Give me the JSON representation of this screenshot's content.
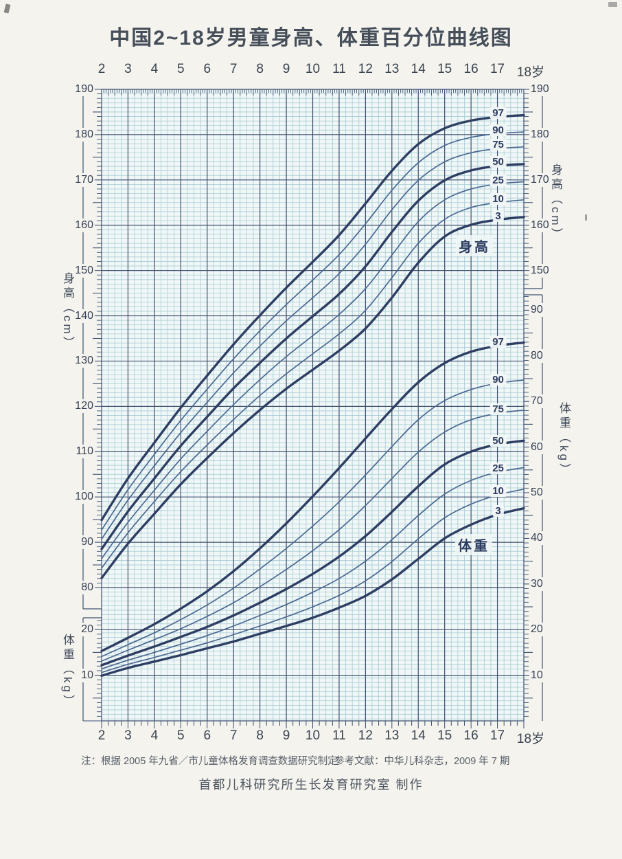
{
  "title": "中国2~18岁男童身高、体重百分位曲线图",
  "axes": {
    "age_labels": [
      "2",
      "3",
      "4",
      "5",
      "6",
      "7",
      "8",
      "9",
      "10",
      "11",
      "12",
      "13",
      "14",
      "15",
      "16",
      "17",
      "18岁"
    ],
    "height_axis_label": "身高（cm）",
    "weight_axis_label": "体重（kg）",
    "left_height_ticks": [
      190,
      180,
      170,
      160,
      150,
      140,
      130,
      120,
      110,
      100,
      90,
      80
    ],
    "left_weight_ticks": [
      20,
      10
    ],
    "right_height_ticks": [
      190,
      180,
      170,
      160,
      150
    ],
    "right_weight_ticks": [
      90,
      80,
      70,
      60,
      50,
      40,
      30,
      20,
      10
    ]
  },
  "chart_data": {
    "type": "line",
    "title": "中国2~18岁男童身高、体重百分位曲线图",
    "x": [
      2,
      3,
      4,
      5,
      6,
      7,
      8,
      9,
      10,
      11,
      12,
      13,
      14,
      15,
      16,
      17,
      18
    ],
    "x_range": [
      2,
      18
    ],
    "height_axis_range_cm": [
      80,
      190
    ],
    "weight_axis_range_kg": [
      0,
      90
    ],
    "grid": "on",
    "height_label": "身高",
    "weight_label": "体重",
    "percentile_order": [
      "97",
      "90",
      "75",
      "50",
      "25",
      "10",
      "3"
    ],
    "height_series": [
      {
        "name": "97",
        "values": [
          94.9,
          104.1,
          112.0,
          119.7,
          126.8,
          133.7,
          140.1,
          146.2,
          151.9,
          157.8,
          164.8,
          172.0,
          177.9,
          181.4,
          183.1,
          183.9,
          184.3
        ]
      },
      {
        "name": "90",
        "values": [
          92.7,
          101.6,
          109.4,
          116.9,
          123.8,
          130.5,
          136.7,
          142.5,
          147.9,
          153.5,
          160.3,
          167.7,
          173.8,
          177.6,
          179.4,
          180.2,
          180.6
        ]
      },
      {
        "name": "75",
        "values": [
          90.7,
          99.3,
          106.9,
          114.2,
          120.9,
          127.4,
          133.3,
          138.9,
          144.0,
          149.3,
          155.8,
          163.4,
          169.9,
          174.0,
          176.0,
          176.9,
          177.3
        ]
      },
      {
        "name": "50",
        "values": [
          88.5,
          96.8,
          104.1,
          111.3,
          117.7,
          124.0,
          129.6,
          135.0,
          139.9,
          144.8,
          150.9,
          158.5,
          165.4,
          169.9,
          172.1,
          173.1,
          173.5
        ]
      },
      {
        "name": "25",
        "values": [
          86.4,
          94.4,
          101.5,
          108.4,
          114.5,
          120.4,
          125.9,
          131.0,
          135.6,
          140.3,
          146.0,
          153.4,
          160.8,
          165.6,
          168.0,
          169.1,
          169.6
        ]
      },
      {
        "name": "10",
        "values": [
          84.3,
          92.1,
          99.0,
          105.6,
          111.5,
          117.1,
          122.4,
          127.2,
          131.6,
          136.0,
          141.2,
          148.4,
          156.0,
          161.3,
          163.9,
          165.0,
          165.6
        ]
      },
      {
        "name": "3",
        "values": [
          82.1,
          89.7,
          96.3,
          102.8,
          108.6,
          114.1,
          119.2,
          123.9,
          128.1,
          132.3,
          137.2,
          144.0,
          151.7,
          157.5,
          160.1,
          161.2,
          161.8
        ]
      }
    ],
    "weight_series": [
      {
        "name": "97",
        "values": [
          15.3,
          18.2,
          21.2,
          24.6,
          28.4,
          32.8,
          37.8,
          43.3,
          49.2,
          55.4,
          61.9,
          68.3,
          74.2,
          78.4,
          80.9,
          82.2,
          82.9
        ]
      },
      {
        "name": "90",
        "values": [
          14.1,
          16.7,
          19.3,
          22.2,
          25.4,
          29.1,
          33.3,
          37.8,
          42.7,
          48.0,
          53.9,
          60.1,
          66.0,
          70.2,
          72.6,
          74.0,
          74.7
        ]
      },
      {
        "name": "75",
        "values": [
          13.1,
          15.5,
          17.8,
          20.2,
          22.9,
          25.9,
          29.4,
          33.2,
          37.3,
          41.9,
          47.2,
          53.1,
          58.9,
          63.3,
          66.0,
          67.4,
          68.1
        ]
      },
      {
        "name": "50",
        "values": [
          12.2,
          14.3,
          16.3,
          18.4,
          20.6,
          23.1,
          25.9,
          28.9,
          32.2,
          36.0,
          40.5,
          45.8,
          51.4,
          56.2,
          59.0,
          60.6,
          61.4
        ]
      },
      {
        "name": "25",
        "values": [
          11.4,
          13.3,
          15.0,
          16.8,
          18.7,
          20.8,
          23.1,
          25.5,
          28.2,
          31.2,
          35.0,
          39.7,
          45.0,
          49.7,
          52.7,
          54.5,
          55.5
        ]
      },
      {
        "name": "10",
        "values": [
          10.6,
          12.4,
          13.9,
          15.5,
          17.1,
          18.9,
          20.8,
          22.8,
          25.0,
          27.5,
          30.7,
          34.9,
          39.9,
          44.5,
          47.5,
          49.5,
          50.8
        ]
      },
      {
        "name": "3",
        "values": [
          9.9,
          11.6,
          13.0,
          14.4,
          15.9,
          17.4,
          19.1,
          20.8,
          22.6,
          24.8,
          27.4,
          31.0,
          35.5,
          40.0,
          43.0,
          45.2,
          46.6
        ]
      }
    ],
    "legend_position": "on-curve-right",
    "colors": {
      "thick_curve": "#2e3e63",
      "thin_curve": "#4a6892",
      "major_grid": "#3d5170",
      "minor_grid": "#a6cbd6",
      "plot_bg": "#f0f7f6"
    }
  },
  "footer": {
    "note": "注：根据 2005 年九省／市儿童体格发育调查数据研究制定",
    "reference": "参考文献：中华儿科杂志，2009 年 7 期",
    "maker": "首都儿科研究所生长发育研究室 制作"
  }
}
